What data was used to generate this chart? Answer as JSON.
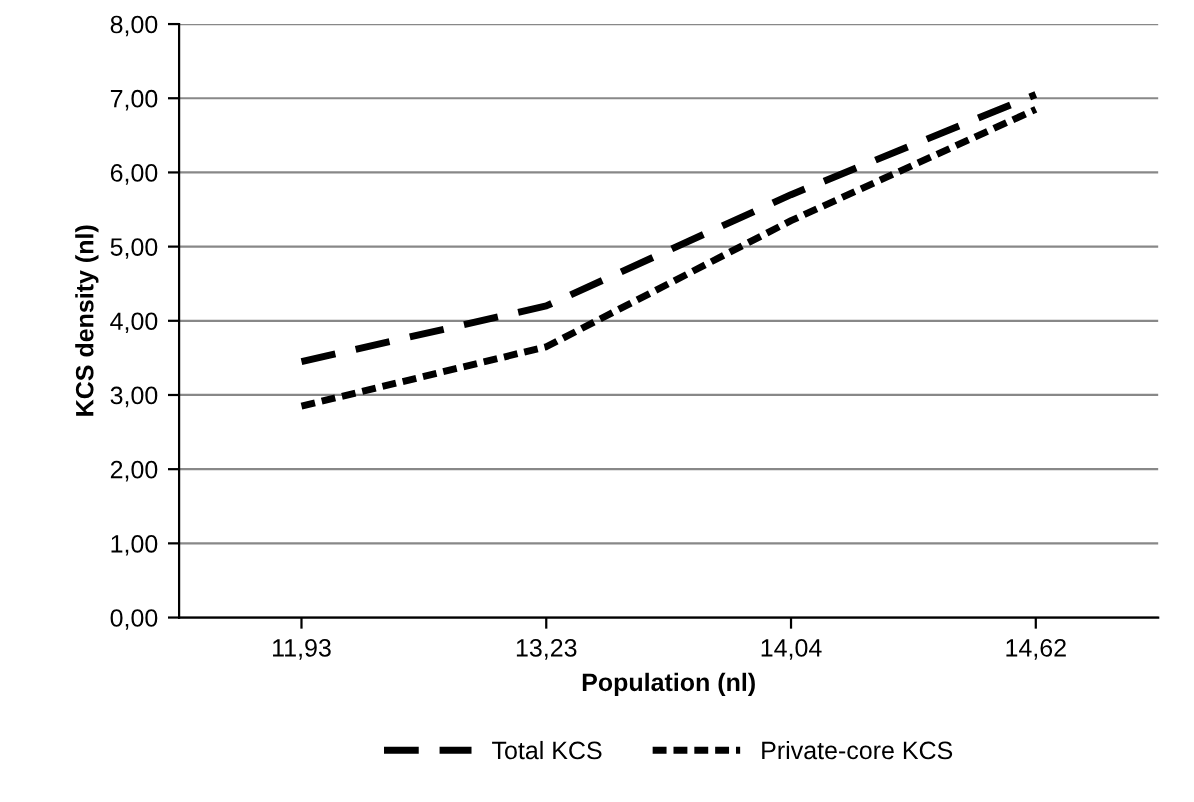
{
  "chart_data": {
    "type": "line",
    "xlabel": "Population (nl)",
    "ylabel": "KCS density (nl)",
    "categories": [
      "11,93",
      "13,23",
      "14,04",
      "14,62"
    ],
    "series": [
      {
        "name": "Total KCS",
        "color": "#000000",
        "line_style": "dashed",
        "values": [
          3.45,
          4.2,
          5.7,
          7.05
        ]
      },
      {
        "name": "Private-core KCS",
        "color": "#000000",
        "line_style": "dotted",
        "values": [
          2.85,
          3.65,
          5.35,
          6.85
        ]
      }
    ],
    "ylim": [
      0,
      8
    ],
    "yticks": [
      {
        "value": 0,
        "label": "0,00"
      },
      {
        "value": 1,
        "label": "1,00"
      },
      {
        "value": 2,
        "label": "2,00"
      },
      {
        "value": 3,
        "label": "3,00"
      },
      {
        "value": 4,
        "label": "4,00"
      },
      {
        "value": 5,
        "label": "5,00"
      },
      {
        "value": 6,
        "label": "6,00"
      },
      {
        "value": 7,
        "label": "7,00"
      },
      {
        "value": 8,
        "label": "8,00"
      }
    ],
    "grid": "y",
    "legend": "bottom"
  }
}
